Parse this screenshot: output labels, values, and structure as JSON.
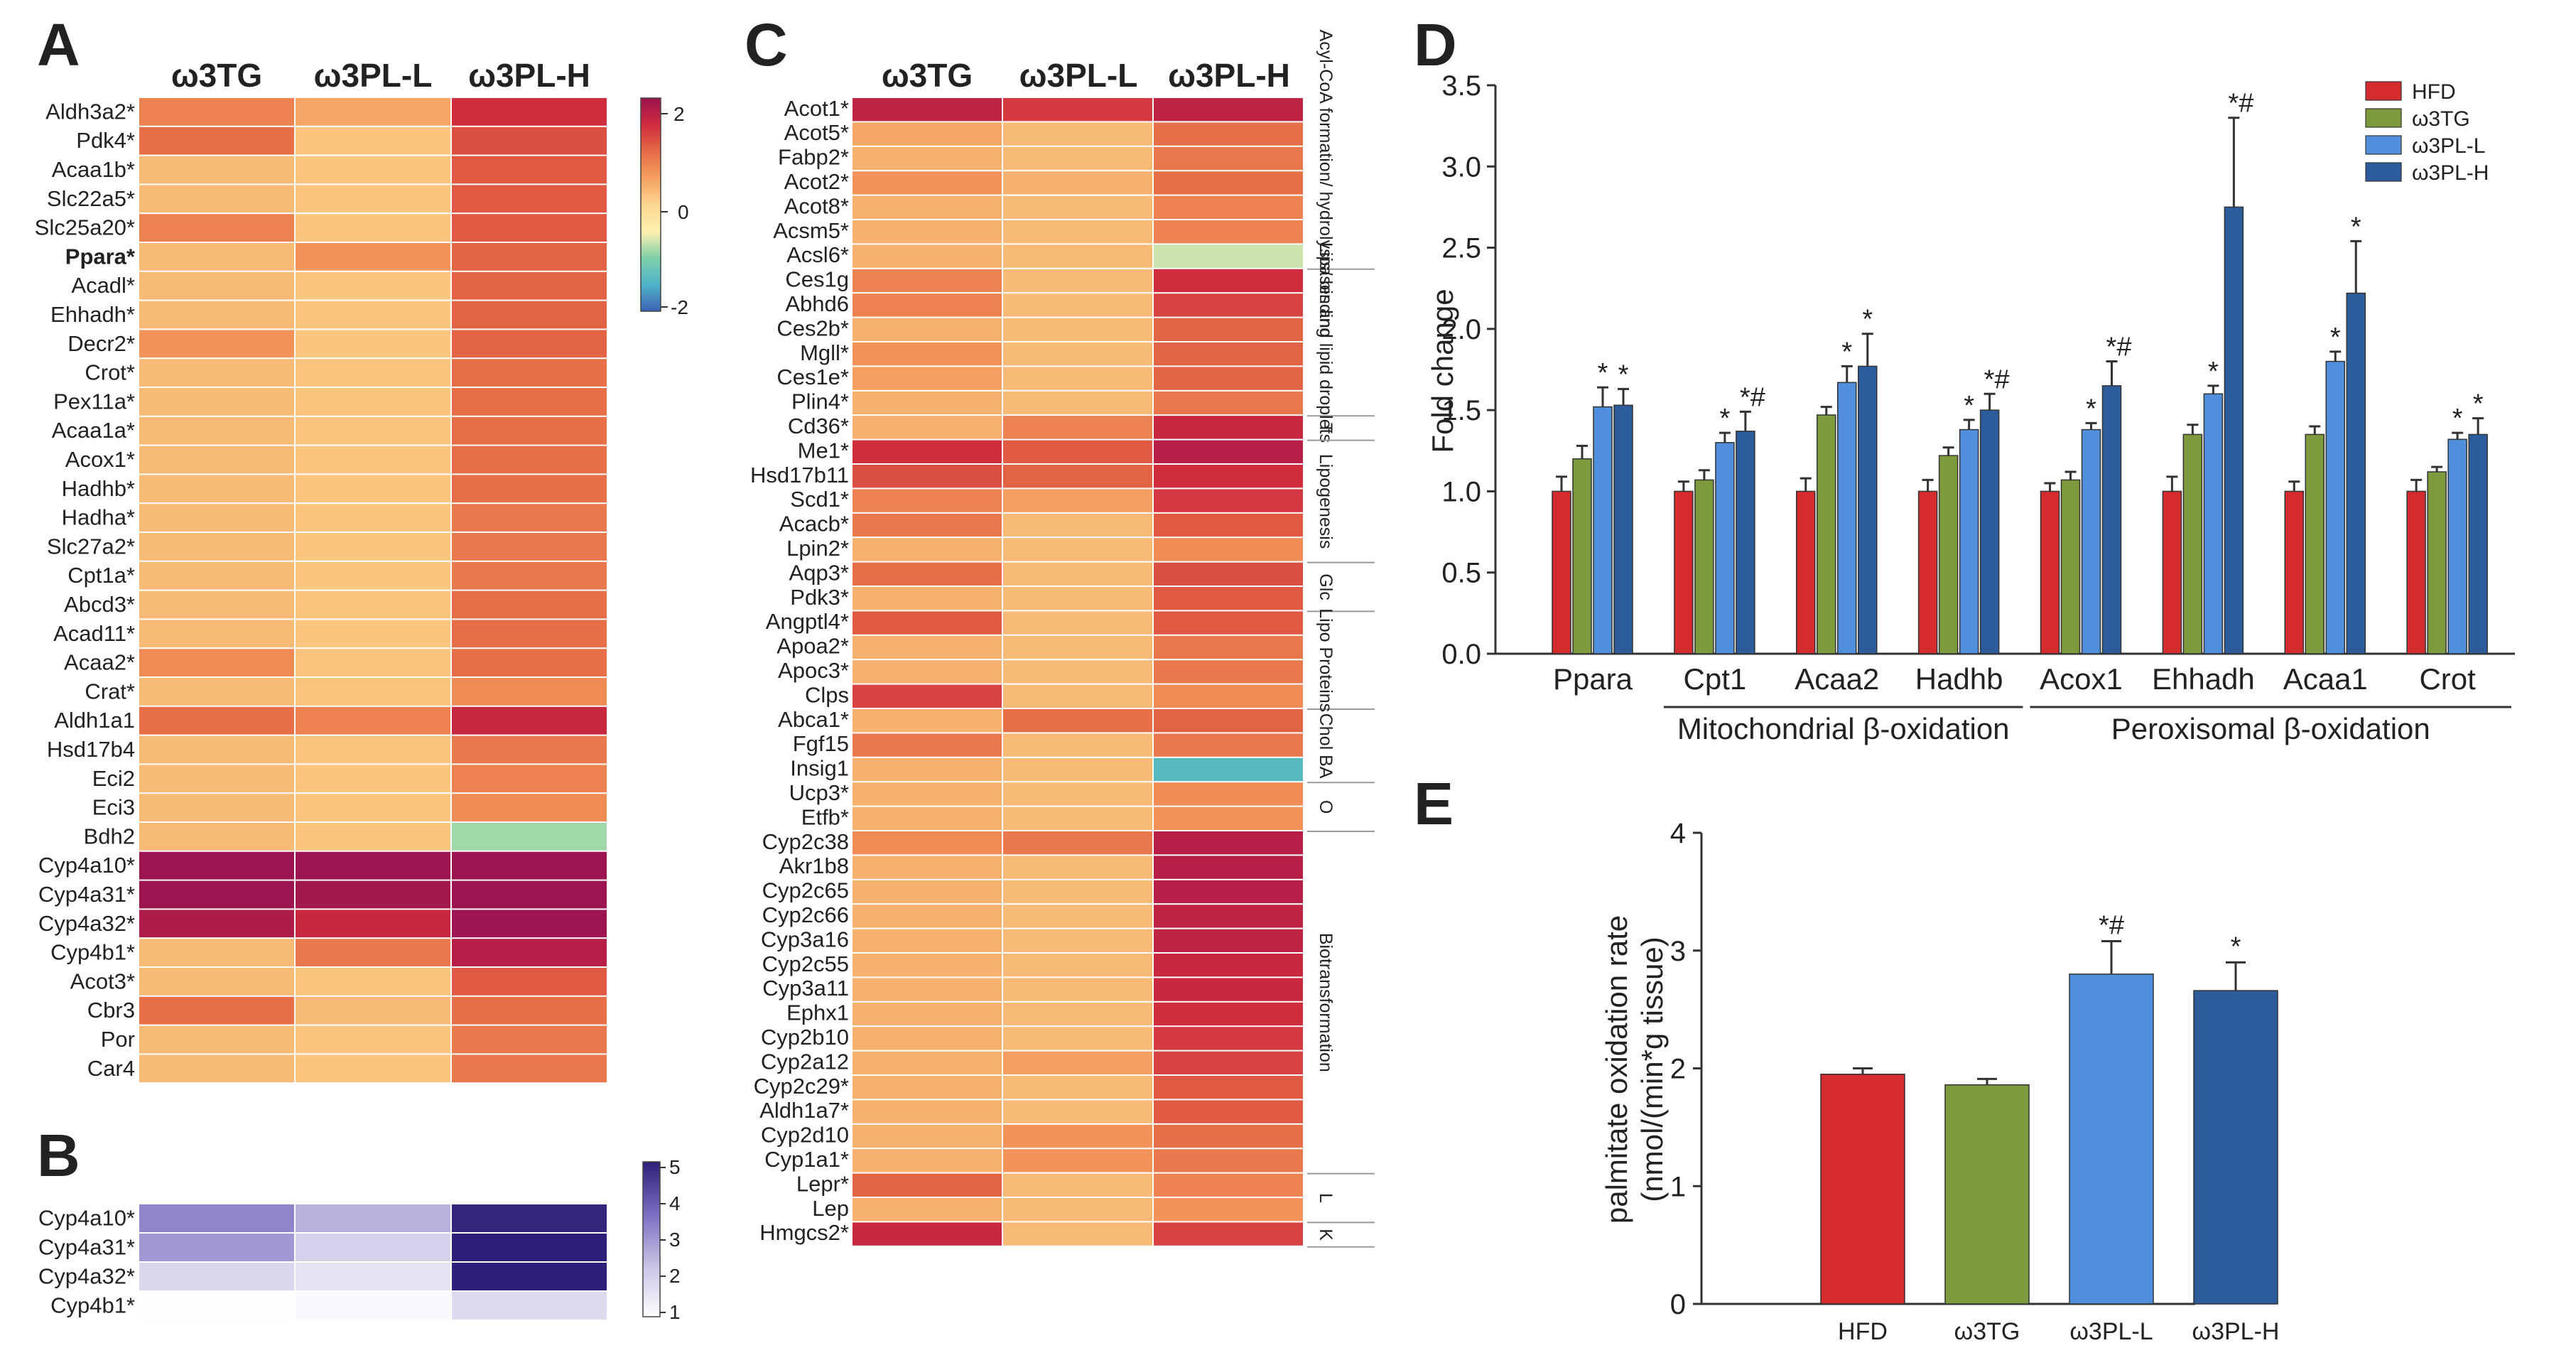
{
  "colors": {
    "HFD": "#d42b2f",
    "w3TG": "#7d9a3c",
    "w3PL-L": "#4f8fdc",
    "w3PL-H": "#2d5c9c",
    "heat_stops": [
      "#3a62b5",
      "#4fb3c8",
      "#7ed0a8",
      "#fff0b0",
      "#fbd890",
      "#f5a060",
      "#e56a45",
      "#cf2a3e",
      "#9c1450"
    ],
    "purple_stops": [
      "#ffffff",
      "#c7c2e4",
      "#7b6cc0",
      "#2e1f78"
    ]
  },
  "panel_labels": {
    "a": "A",
    "b": "B",
    "c": "C",
    "d": "D",
    "e": "E"
  },
  "heatmap_columns": [
    "ω3TG",
    "ω3PL-L",
    "ω3PL-H"
  ],
  "panelA": {
    "rows": [
      {
        "gene": "Aldh3a2*",
        "v": [
          0.9,
          0.5,
          1.7
        ]
      },
      {
        "gene": "Pdk4*",
        "v": [
          1.1,
          0.2,
          1.4
        ]
      },
      {
        "gene": "Acaa1b*",
        "v": [
          0.3,
          0.2,
          1.3
        ]
      },
      {
        "gene": "Slc22a5*",
        "v": [
          0.3,
          0.2,
          1.3
        ]
      },
      {
        "gene": "Slc25a20*",
        "v": [
          0.9,
          0.2,
          1.3
        ]
      },
      {
        "gene": "Ppara*",
        "v": [
          0.3,
          0.7,
          1.2
        ],
        "bold": true
      },
      {
        "gene": "Acadl*",
        "v": [
          0.3,
          0.2,
          1.2
        ]
      },
      {
        "gene": "Ehhadh*",
        "v": [
          0.3,
          0.2,
          1.2
        ]
      },
      {
        "gene": "Decr2*",
        "v": [
          0.7,
          0.2,
          1.2
        ]
      },
      {
        "gene": "Crot*",
        "v": [
          0.3,
          0.2,
          1.1
        ]
      },
      {
        "gene": "Pex11a*",
        "v": [
          0.3,
          0.2,
          1.1
        ]
      },
      {
        "gene": "Acaa1a*",
        "v": [
          0.3,
          0.2,
          1.1
        ]
      },
      {
        "gene": "Acox1*",
        "v": [
          0.3,
          0.2,
          1.1
        ]
      },
      {
        "gene": "Hadhb*",
        "v": [
          0.3,
          0.2,
          1.1
        ]
      },
      {
        "gene": "Hadha*",
        "v": [
          0.3,
          0.2,
          1.0
        ]
      },
      {
        "gene": "Slc27a2*",
        "v": [
          0.3,
          0.2,
          1.0
        ]
      },
      {
        "gene": "Cpt1a*",
        "v": [
          0.3,
          0.2,
          1.0
        ]
      },
      {
        "gene": "Abcd3*",
        "v": [
          0.3,
          0.2,
          1.1
        ]
      },
      {
        "gene": "Acad11*",
        "v": [
          0.3,
          0.2,
          1.1
        ]
      },
      {
        "gene": "Acaa2*",
        "v": [
          0.8,
          0.2,
          1.1
        ]
      },
      {
        "gene": "Crat*",
        "v": [
          0.3,
          0.2,
          0.8
        ]
      },
      {
        "gene": "Aldh1a1",
        "v": [
          1.1,
          0.9,
          1.8
        ]
      },
      {
        "gene": "Hsd17b4",
        "v": [
          0.3,
          0.2,
          1.0
        ]
      },
      {
        "gene": "Eci2",
        "v": [
          0.3,
          0.2,
          0.9
        ]
      },
      {
        "gene": "Eci3",
        "v": [
          0.3,
          0.2,
          0.8
        ]
      },
      {
        "gene": "Bdh2",
        "v": [
          0.3,
          0.2,
          -1.0
        ]
      },
      {
        "gene": "Cyp4a10*",
        "v": [
          2.3,
          2.3,
          2.3
        ]
      },
      {
        "gene": "Cyp4a31*",
        "v": [
          2.3,
          2.2,
          2.3
        ]
      },
      {
        "gene": "Cyp4a32*",
        "v": [
          2.1,
          1.8,
          2.3
        ]
      },
      {
        "gene": "Cyp4b1*",
        "v": [
          0.3,
          1.0,
          2.0
        ]
      },
      {
        "gene": "Acot3*",
        "v": [
          0.3,
          0.2,
          1.3
        ]
      },
      {
        "gene": "Cbr3",
        "v": [
          1.1,
          0.3,
          1.1
        ]
      },
      {
        "gene": "Por",
        "v": [
          0.3,
          0.2,
          1.0
        ]
      },
      {
        "gene": "Car4",
        "v": [
          0.3,
          0.2,
          1.0
        ]
      }
    ],
    "colorbar": {
      "ticks": [
        "2",
        "0",
        "-2"
      ]
    }
  },
  "panelB": {
    "rows": [
      {
        "gene": "Cyp4a10*",
        "v": [
          3.3,
          2.6,
          4.9
        ]
      },
      {
        "gene": "Cyp4a31*",
        "v": [
          3.0,
          2.0,
          5.0
        ]
      },
      {
        "gene": "Cyp4a32*",
        "v": [
          1.9,
          1.6,
          5.0
        ]
      },
      {
        "gene": "Cyp4b1*",
        "v": [
          1.05,
          1.15,
          1.8
        ]
      }
    ],
    "colorbar": {
      "ticks": [
        "5",
        "4",
        "3",
        "2",
        "1"
      ]
    }
  },
  "panelC": {
    "rows": [
      {
        "gene": "Acot1*",
        "v": [
          1.9,
          1.6,
          1.9
        ]
      },
      {
        "gene": "Acot5*",
        "v": [
          0.5,
          0.3,
          1.1
        ]
      },
      {
        "gene": "Fabp2*",
        "v": [
          0.4,
          0.3,
          1.0
        ]
      },
      {
        "gene": "Acot2*",
        "v": [
          0.7,
          0.4,
          1.1
        ]
      },
      {
        "gene": "Acot8*",
        "v": [
          0.4,
          0.3,
          0.9
        ]
      },
      {
        "gene": "Acsm5*",
        "v": [
          0.4,
          0.3,
          0.9
        ]
      },
      {
        "gene": "Acsl6*",
        "v": [
          0.4,
          0.3,
          -0.8
        ]
      },
      {
        "gene": "Ces1g",
        "v": [
          0.9,
          0.3,
          1.7
        ]
      },
      {
        "gene": "Abhd6",
        "v": [
          0.9,
          0.3,
          1.5
        ]
      },
      {
        "gene": "Ces2b*",
        "v": [
          0.4,
          0.3,
          1.2
        ]
      },
      {
        "gene": "Mgll*",
        "v": [
          0.7,
          0.3,
          1.2
        ]
      },
      {
        "gene": "Ces1e*",
        "v": [
          0.6,
          0.3,
          1.2
        ]
      },
      {
        "gene": "Plin4*",
        "v": [
          0.4,
          0.3,
          1.0
        ]
      },
      {
        "gene": "Cd36*",
        "v": [
          0.4,
          0.9,
          1.8
        ]
      },
      {
        "gene": "Me1*",
        "v": [
          1.7,
          1.3,
          2.0
        ]
      },
      {
        "gene": "Hsd17b11",
        "v": [
          1.4,
          1.2,
          1.7
        ]
      },
      {
        "gene": "Scd1*",
        "v": [
          0.9,
          0.6,
          1.6
        ]
      },
      {
        "gene": "Acacb*",
        "v": [
          1.0,
          0.3,
          1.3
        ]
      },
      {
        "gene": "Lpin2*",
        "v": [
          0.4,
          0.3,
          0.8
        ]
      },
      {
        "gene": "Aqp3*",
        "v": [
          1.1,
          0.3,
          1.4
        ]
      },
      {
        "gene": "Pdk3*",
        "v": [
          0.4,
          0.3,
          1.3
        ]
      },
      {
        "gene": "Angptl4*",
        "v": [
          1.3,
          0.3,
          1.3
        ]
      },
      {
        "gene": "Apoa2*",
        "v": [
          0.4,
          0.3,
          1.0
        ]
      },
      {
        "gene": "Apoc3*",
        "v": [
          0.4,
          0.3,
          1.0
        ]
      },
      {
        "gene": "Clps",
        "v": [
          1.5,
          0.3,
          0.8
        ]
      },
      {
        "gene": "Abca1*",
        "v": [
          0.4,
          1.1,
          1.2
        ]
      },
      {
        "gene": "Fgf15",
        "v": [
          1.0,
          0.3,
          1.0
        ]
      },
      {
        "gene": "Insig1",
        "v": [
          0.4,
          0.3,
          -1.6
        ]
      },
      {
        "gene": "Ucp3*",
        "v": [
          0.4,
          0.3,
          0.8
        ]
      },
      {
        "gene": "Etfb*",
        "v": [
          0.4,
          0.3,
          0.7
        ]
      },
      {
        "gene": "Cyp2c38",
        "v": [
          0.8,
          1.0,
          2.0
        ]
      },
      {
        "gene": "Akr1b8",
        "v": [
          0.4,
          0.3,
          2.0
        ]
      },
      {
        "gene": "Cyp2c65",
        "v": [
          0.4,
          0.3,
          2.0
        ]
      },
      {
        "gene": "Cyp2c66",
        "v": [
          0.4,
          0.3,
          1.9
        ]
      },
      {
        "gene": "Cyp3a16",
        "v": [
          0.4,
          0.3,
          1.9
        ]
      },
      {
        "gene": "Cyp2c55",
        "v": [
          0.4,
          0.3,
          1.8
        ]
      },
      {
        "gene": "Cyp3a11",
        "v": [
          0.4,
          0.3,
          1.8
        ]
      },
      {
        "gene": "Ephx1",
        "v": [
          0.4,
          0.3,
          1.7
        ]
      },
      {
        "gene": "Cyp2b10",
        "v": [
          0.4,
          0.3,
          1.6
        ]
      },
      {
        "gene": "Cyp2a12",
        "v": [
          0.4,
          0.6,
          1.5
        ]
      },
      {
        "gene": "Cyp2c29*",
        "v": [
          0.4,
          0.3,
          1.3
        ]
      },
      {
        "gene": "Aldh1a7*",
        "v": [
          0.4,
          0.3,
          1.3
        ]
      },
      {
        "gene": "Cyp2d10",
        "v": [
          0.4,
          0.7,
          1.1
        ]
      },
      {
        "gene": "Cyp1a1*",
        "v": [
          0.4,
          0.7,
          1.0
        ]
      },
      {
        "gene": "Lepr*",
        "v": [
          1.2,
          0.3,
          0.9
        ]
      },
      {
        "gene": "Lep",
        "v": [
          0.4,
          0.3,
          0.7
        ]
      },
      {
        "gene": "Hmgcs2*",
        "v": [
          1.8,
          0.3,
          1.5
        ]
      }
    ],
    "sections": [
      {
        "label": "Acyl-CoA formation/ hydrolysis/ binding",
        "start": 0,
        "end": 6
      },
      {
        "label": "Lipases and lipid droplets",
        "start": 7,
        "end": 12
      },
      {
        "label": "T",
        "start": 13,
        "end": 13
      },
      {
        "label": "Lipogenesis",
        "start": 14,
        "end": 18
      },
      {
        "label": "Glc",
        "start": 19,
        "end": 20
      },
      {
        "label": "Lipo Proteins",
        "start": 21,
        "end": 24
      },
      {
        "label": "Chol BA",
        "start": 25,
        "end": 27
      },
      {
        "label": "O",
        "start": 28,
        "end": 29
      },
      {
        "label": "Biotransformation",
        "start": 30,
        "end": 43
      },
      {
        "label": "L",
        "start": 44,
        "end": 45
      },
      {
        "label": "K",
        "start": 46,
        "end": 46
      }
    ]
  },
  "chart_data": [
    {
      "id": "D",
      "type": "bar",
      "ylabel": "Fold change",
      "ylim": [
        0,
        3.5
      ],
      "yticks": [
        "0.0",
        "0.5",
        "1.0",
        "1.5",
        "2.0",
        "2.5",
        "3.0",
        "3.5"
      ],
      "categories": [
        "Ppara",
        "Cpt1",
        "Acaa2",
        "Hadhb",
        "Acox1",
        "Ehhadh",
        "Acaa1",
        "Crot"
      ],
      "series": [
        {
          "name": "HFD",
          "values": [
            1.0,
            1.0,
            1.0,
            1.0,
            1.0,
            1.0,
            1.0,
            1.0
          ],
          "errors": [
            0.09,
            0.06,
            0.08,
            0.07,
            0.05,
            0.09,
            0.06,
            0.07
          ]
        },
        {
          "name": "ω3TG",
          "values": [
            1.2,
            1.07,
            1.47,
            1.22,
            1.07,
            1.35,
            1.35,
            1.12
          ]
        },
        {
          "name": "ω3PL-L",
          "values": [
            1.52,
            1.3,
            1.67,
            1.38,
            1.38,
            1.6,
            1.8,
            1.32
          ]
        },
        {
          "name": "ω3PL-H",
          "values": [
            1.53,
            1.37,
            1.77,
            1.5,
            1.65,
            2.75,
            2.22,
            1.35
          ]
        }
      ],
      "errors_w3TG": [
        0.08,
        0.06,
        0.05,
        0.05,
        0.05,
        0.06,
        0.05,
        0.03
      ],
      "errors_w3PLL": [
        0.12,
        0.06,
        0.1,
        0.06,
        0.04,
        0.05,
        0.06,
        0.04
      ],
      "errors_w3PLH": [
        0.1,
        0.12,
        0.2,
        0.1,
        0.15,
        0.55,
        0.32,
        0.1
      ],
      "sig_w3PLL": [
        "*",
        "*",
        "*",
        "*",
        "*",
        "*",
        "*",
        "*"
      ],
      "sig_w3PLH": [
        "*",
        "*#",
        "*",
        "*#",
        "*#",
        "*#",
        "*",
        "*"
      ],
      "groups": [
        {
          "label": "Mitochondrial β-oxidation",
          "start": 1,
          "end": 3
        },
        {
          "label": "Peroxisomal β-oxidation",
          "start": 4,
          "end": 7
        }
      ],
      "legend": [
        "HFD",
        "ω3TG",
        "ω3PL-L",
        "ω3PL-H"
      ],
      "legend_position": "top-right"
    },
    {
      "id": "E",
      "type": "bar",
      "ylabel": "palmitate oxidation rate",
      "ylabel2": "(nmol/(min*g tissue)",
      "ylim": [
        0,
        4
      ],
      "yticks": [
        "0",
        "1",
        "2",
        "3",
        "4"
      ],
      "categories": [
        "HFD",
        "ω3TG",
        "ω3PL-L",
        "ω3PL-H"
      ],
      "values": [
        1.95,
        1.86,
        2.8,
        2.66
      ],
      "errors": [
        0.05,
        0.05,
        0.28,
        0.24
      ],
      "sig": [
        "",
        "",
        "*#",
        "*"
      ]
    }
  ]
}
